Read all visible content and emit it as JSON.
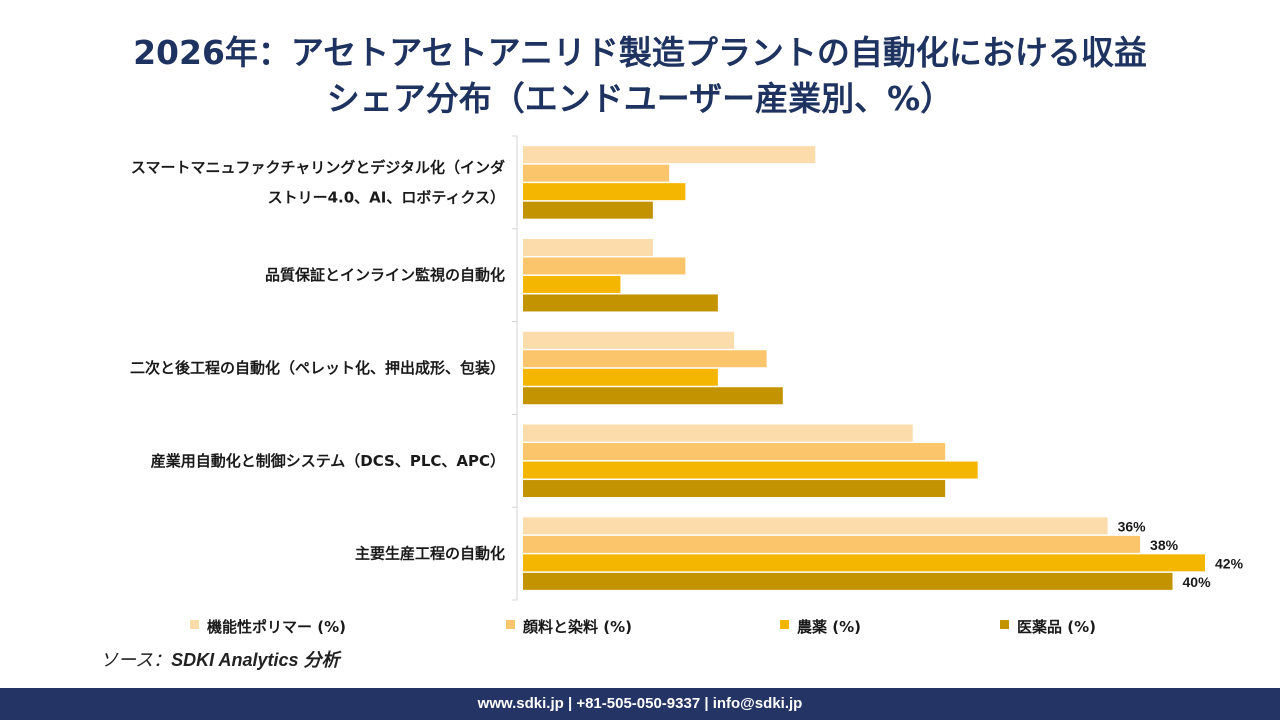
{
  "title_line1": "2026年：アセトアセトアニリド製造プラントの自動化における収益",
  "title_line2": "シェア分布（エンドユーザー産業別、%）",
  "source_prefix": "ソース：",
  "source_name": "SDKI Analytics 分析",
  "footer_text": "www.sdki.jp | +81-505-050-9337 | info@sdki.jp",
  "chart_data": {
    "type": "bar",
    "orientation": "horizontal",
    "categories": [
      [
        "スマートマニュファクチャリングとデジタル化（インダ",
        "ストリー4.0、AI、ロボティクス）"
      ],
      [
        "品質保証とインライン監視の自動化"
      ],
      [
        "二次と後工程の自動化（ペレット化、押出成形、包装）"
      ],
      [
        "産業用自動化と制御システム（DCS、PLC、APC）"
      ],
      [
        "主要生産工程の自動化"
      ]
    ],
    "series": [
      {
        "name": "機能性ポリマー (%)",
        "color": "#fcdcaa",
        "values": [
          18,
          8,
          13,
          24,
          36
        ]
      },
      {
        "name": "顔料と染料 (%)",
        "color": "#fbc66b",
        "values": [
          9,
          10,
          15,
          26,
          38
        ]
      },
      {
        "name": "農薬 (%)",
        "color": "#f4b600",
        "values": [
          10,
          6,
          12,
          28,
          42
        ]
      },
      {
        "name": "医薬品 (%)",
        "color": "#c49302",
        "values": [
          8,
          12,
          16,
          26,
          40
        ]
      }
    ],
    "data_labels": {
      "category_index": 4,
      "labels": [
        "36%",
        "38%",
        "42%",
        "40%"
      ]
    },
    "xlim": [
      0,
      42
    ],
    "legend_position": "bottom"
  }
}
